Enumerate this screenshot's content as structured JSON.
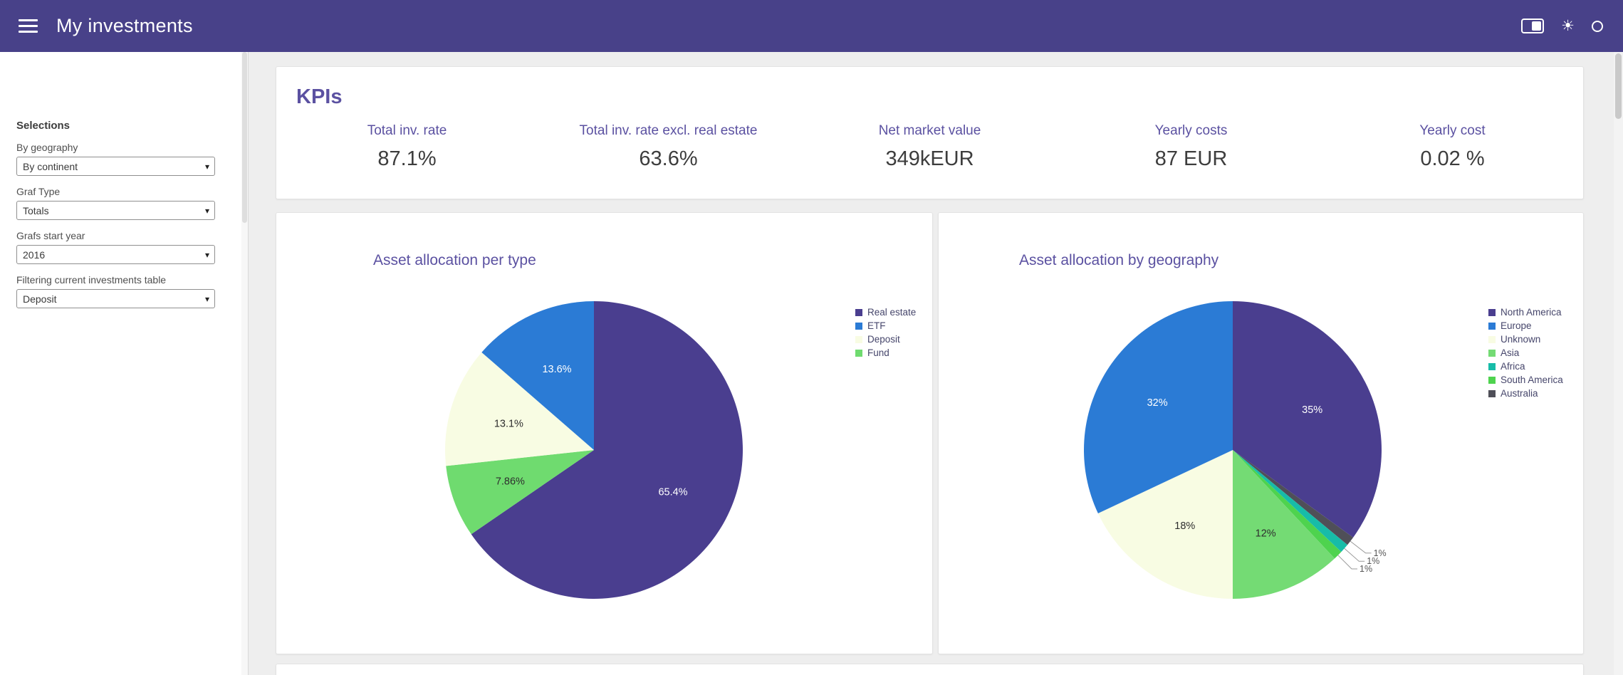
{
  "app": {
    "title": "My investments"
  },
  "icons": {
    "dropdown_arrow": "▾",
    "sun": "☀"
  },
  "sidebar": {
    "heading": "Selections",
    "filters": [
      {
        "label": "By geography",
        "value": "By continent"
      },
      {
        "label": "Graf Type",
        "value": "Totals"
      },
      {
        "label": "Grafs start year",
        "value": "2016"
      },
      {
        "label": "Filtering current investments table",
        "value": "Deposit"
      }
    ]
  },
  "kpis": {
    "title": "KPIs",
    "items": [
      {
        "label": "Total inv. rate",
        "value": "87.1%"
      },
      {
        "label": "Total inv. rate excl. real estate",
        "value": "63.6%"
      },
      {
        "label": "Net market value",
        "value": "349kEUR"
      },
      {
        "label": "Yearly costs",
        "value": "87 EUR"
      },
      {
        "label": "Yearly cost",
        "value": "0.02 %"
      }
    ]
  },
  "chart_data": [
    {
      "type": "pie",
      "title": "Asset allocation per type",
      "legend_position": "right",
      "slices": [
        {
          "label": "Real estate",
          "value": 65.4,
          "display": "65.4%",
          "color": "#4a3e8f"
        },
        {
          "label": "Fund",
          "value": 7.86,
          "display": "7.86%",
          "color": "#6fdb6f"
        },
        {
          "label": "Deposit",
          "value": 13.1,
          "display": "13.1%",
          "color": "#f8fce3"
        },
        {
          "label": "ETF",
          "value": 13.6,
          "display": "13.6%",
          "color": "#2b7bd5"
        }
      ],
      "legend_order": [
        "Real estate",
        "ETF",
        "Deposit",
        "Fund"
      ]
    },
    {
      "type": "pie",
      "title": "Asset allocation by geography",
      "legend_position": "right",
      "slices": [
        {
          "label": "North America",
          "value": 35,
          "display": "35%",
          "color": "#4a3e8f"
        },
        {
          "label": "Australia",
          "value": 1,
          "display": "1%",
          "color": "#4f4f58"
        },
        {
          "label": "Africa",
          "value": 1,
          "display": "1%",
          "color": "#17bca8"
        },
        {
          "label": "South America",
          "value": 1,
          "display": "1%",
          "color": "#4ed34e"
        },
        {
          "label": "Asia",
          "value": 12,
          "display": "12%",
          "color": "#74db74"
        },
        {
          "label": "Unknown",
          "value": 18,
          "display": "18%",
          "color": "#f8fce3"
        },
        {
          "label": "Europe",
          "value": 32,
          "display": "32%",
          "color": "#2b7bd5"
        }
      ],
      "legend_order": [
        "North America",
        "Europe",
        "Unknown",
        "Asia",
        "Africa",
        "South America",
        "Australia"
      ]
    }
  ]
}
